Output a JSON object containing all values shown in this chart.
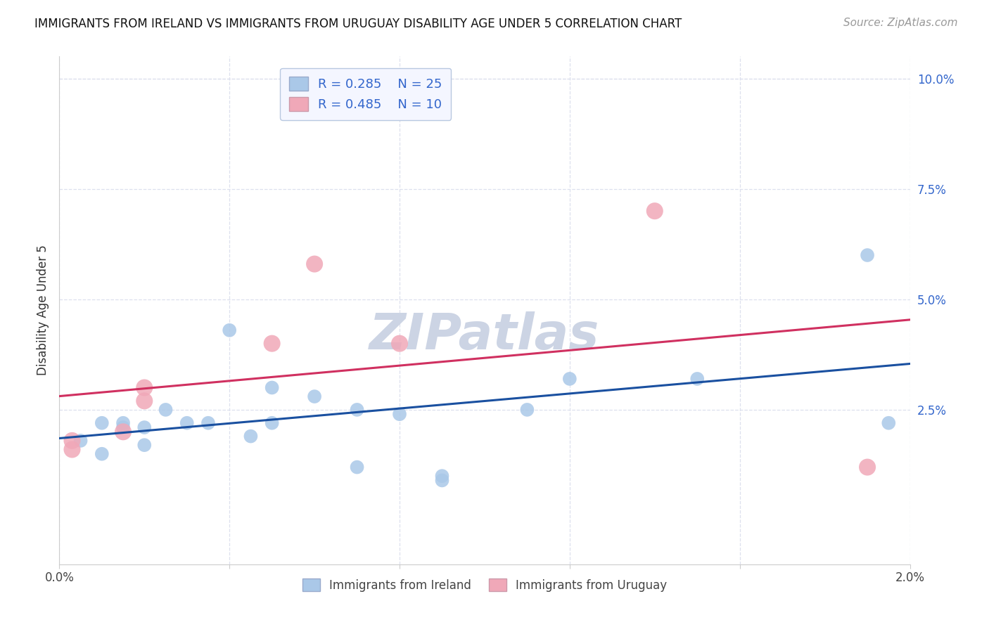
{
  "title": "IMMIGRANTS FROM IRELAND VS IMMIGRANTS FROM URUGUAY DISABILITY AGE UNDER 5 CORRELATION CHART",
  "source": "Source: ZipAtlas.com",
  "ylabel": "Disability Age Under 5",
  "xlim": [
    0.0,
    0.02
  ],
  "ylim": [
    -0.01,
    0.105
  ],
  "xticks": [
    0.0,
    0.004,
    0.008,
    0.012,
    0.016,
    0.02
  ],
  "xtick_labels_show": [
    "0.0%",
    "2.0%"
  ],
  "xtick_labels_pos": [
    0.0,
    0.02
  ],
  "yticks": [
    0.025,
    0.05,
    0.075,
    0.1
  ],
  "ytick_labels": [
    "2.5%",
    "5.0%",
    "7.5%",
    "10.0%"
  ],
  "ireland_R": "0.285",
  "ireland_N": "25",
  "uruguay_R": "0.485",
  "uruguay_N": "10",
  "ireland_color": "#aac8e8",
  "uruguay_color": "#f0a8b8",
  "ireland_line_color": "#1a50a0",
  "uruguay_line_color": "#d03060",
  "background_color": "#ffffff",
  "grid_color": "#dde0ee",
  "ireland_x": [
    0.0005,
    0.001,
    0.001,
    0.0015,
    0.0015,
    0.002,
    0.002,
    0.0025,
    0.003,
    0.0035,
    0.004,
    0.0045,
    0.005,
    0.005,
    0.006,
    0.007,
    0.007,
    0.008,
    0.009,
    0.009,
    0.011,
    0.012,
    0.015,
    0.019,
    0.0195
  ],
  "ireland_y": [
    0.018,
    0.015,
    0.022,
    0.022,
    0.021,
    0.017,
    0.021,
    0.025,
    0.022,
    0.022,
    0.043,
    0.019,
    0.03,
    0.022,
    0.028,
    0.025,
    0.012,
    0.024,
    0.01,
    0.009,
    0.025,
    0.032,
    0.032,
    0.06,
    0.022
  ],
  "ireland_scatter_size": 200,
  "uruguay_x": [
    0.0003,
    0.0003,
    0.0015,
    0.002,
    0.002,
    0.005,
    0.006,
    0.008,
    0.014,
    0.019
  ],
  "uruguay_y": [
    0.018,
    0.016,
    0.02,
    0.027,
    0.03,
    0.04,
    0.058,
    0.04,
    0.07,
    0.012
  ],
  "uruguay_scatter_size": 300,
  "legend_box_fc": "#f4f6ff",
  "legend_box_ec": "#b8c8e0",
  "title_fontsize": 12,
  "label_fontsize": 12,
  "tick_fontsize": 12,
  "source_fontsize": 11,
  "watermark_text": "ZIPatlas",
  "watermark_color": "#ccd4e4",
  "watermark_fontsize": 52,
  "legend_color": "#3366cc",
  "bottom_label_color": "#444444"
}
